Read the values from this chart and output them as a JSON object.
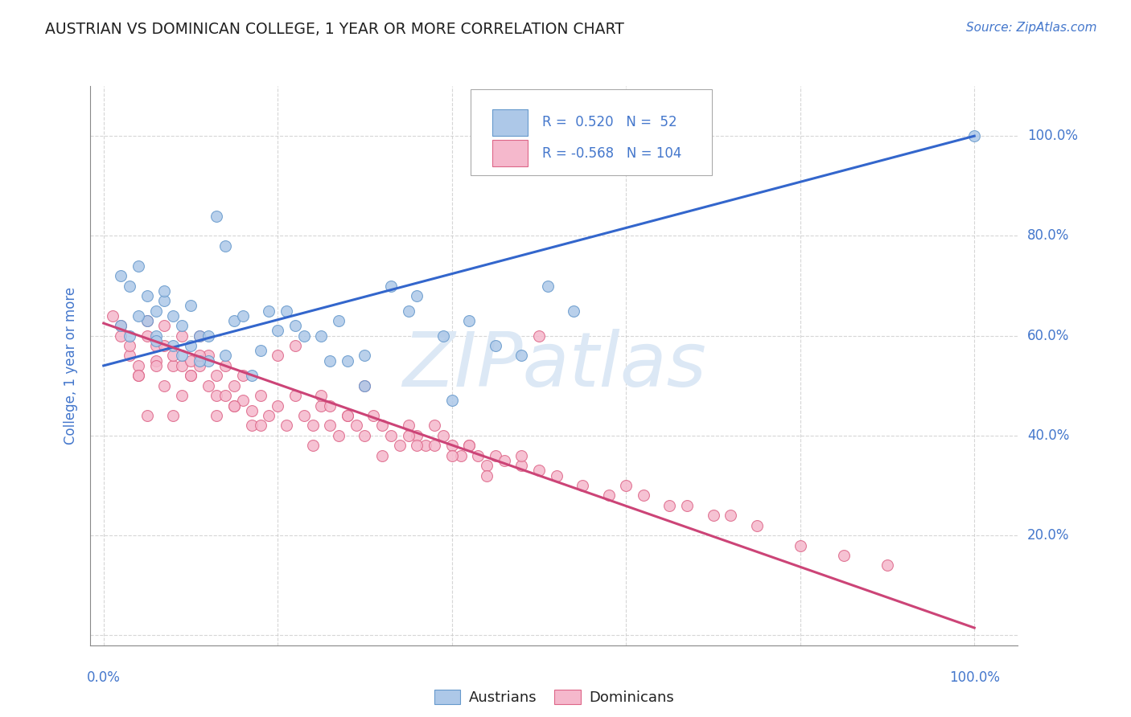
{
  "title": "AUSTRIAN VS DOMINICAN COLLEGE, 1 YEAR OR MORE CORRELATION CHART",
  "source": "Source: ZipAtlas.com",
  "ylabel": "College, 1 year or more",
  "legend_austrians": "Austrians",
  "legend_dominicans": "Dominicans",
  "R_austrians": 0.52,
  "N_austrians": 52,
  "R_dominicans": -0.568,
  "N_dominicans": 104,
  "austrian_color": "#adc8e8",
  "austrian_edge_color": "#6699cc",
  "austrian_line_color": "#3366cc",
  "dominican_color": "#f5b8cc",
  "dominican_edge_color": "#dd6688",
  "dominican_line_color": "#cc4477",
  "blue_text_color": "#4477cc",
  "watermark_color": "#dce8f5",
  "background_color": "#ffffff",
  "grid_color": "#cccccc",
  "title_color": "#222222",
  "legend_box_color": "#aaaaaa",
  "austrian_line_y_start": 0.54,
  "austrian_line_y_end": 1.0,
  "dominican_line_y_start": 0.625,
  "dominican_line_y_end": 0.015,
  "ylim": [
    -0.02,
    1.1
  ],
  "xlim": [
    -0.015,
    1.05
  ],
  "ytick_positions": [
    0.0,
    0.2,
    0.4,
    0.6,
    0.8,
    1.0
  ],
  "ytick_labels_right": [
    "",
    "20.0%",
    "40.0%",
    "60.0%",
    "80.0%",
    "100.0%"
  ],
  "xtick_positions": [
    0.0,
    0.2,
    0.4,
    0.6,
    0.8,
    1.0
  ],
  "austrian_x": [
    0.02,
    0.03,
    0.04,
    0.05,
    0.05,
    0.06,
    0.06,
    0.07,
    0.08,
    0.08,
    0.09,
    0.09,
    0.1,
    0.1,
    0.11,
    0.12,
    0.13,
    0.14,
    0.15,
    0.17,
    0.19,
    0.21,
    0.23,
    0.25,
    0.27,
    0.3,
    0.33,
    0.36,
    0.39,
    0.42,
    0.45,
    0.48,
    0.51,
    0.54,
    0.4,
    0.3,
    0.28,
    0.22,
    0.26,
    0.2,
    0.18,
    0.16,
    0.14,
    0.12,
    0.11,
    0.07,
    0.06,
    0.04,
    0.03,
    0.02,
    0.35,
    1.0
  ],
  "austrian_y": [
    0.72,
    0.7,
    0.74,
    0.68,
    0.63,
    0.65,
    0.6,
    0.67,
    0.64,
    0.58,
    0.62,
    0.56,
    0.66,
    0.58,
    0.6,
    0.55,
    0.84,
    0.78,
    0.63,
    0.52,
    0.65,
    0.65,
    0.6,
    0.6,
    0.63,
    0.56,
    0.7,
    0.68,
    0.6,
    0.63,
    0.58,
    0.56,
    0.7,
    0.65,
    0.47,
    0.5,
    0.55,
    0.62,
    0.55,
    0.61,
    0.57,
    0.64,
    0.56,
    0.6,
    0.55,
    0.69,
    0.59,
    0.64,
    0.6,
    0.62,
    0.65,
    1.0
  ],
  "dominican_x": [
    0.01,
    0.02,
    0.02,
    0.03,
    0.03,
    0.04,
    0.04,
    0.05,
    0.05,
    0.06,
    0.06,
    0.07,
    0.07,
    0.08,
    0.08,
    0.09,
    0.09,
    0.1,
    0.1,
    0.11,
    0.11,
    0.12,
    0.12,
    0.13,
    0.13,
    0.14,
    0.14,
    0.15,
    0.15,
    0.16,
    0.16,
    0.17,
    0.18,
    0.19,
    0.2,
    0.21,
    0.22,
    0.23,
    0.24,
    0.25,
    0.26,
    0.27,
    0.28,
    0.29,
    0.3,
    0.31,
    0.32,
    0.33,
    0.34,
    0.35,
    0.36,
    0.37,
    0.38,
    0.39,
    0.4,
    0.41,
    0.42,
    0.43,
    0.44,
    0.45,
    0.46,
    0.48,
    0.5,
    0.52,
    0.55,
    0.58,
    0.6,
    0.62,
    0.65,
    0.67,
    0.7,
    0.72,
    0.75,
    0.8,
    0.85,
    0.9,
    0.5,
    0.04,
    0.3,
    0.2,
    0.25,
    0.1,
    0.15,
    0.22,
    0.08,
    0.06,
    0.07,
    0.09,
    0.11,
    0.13,
    0.17,
    0.28,
    0.35,
    0.42,
    0.05,
    0.48,
    0.4,
    0.18,
    0.24,
    0.26,
    0.32,
    0.38,
    0.44,
    0.36
  ],
  "dominican_y": [
    0.64,
    0.62,
    0.6,
    0.56,
    0.58,
    0.54,
    0.52,
    0.63,
    0.6,
    0.58,
    0.55,
    0.62,
    0.58,
    0.54,
    0.56,
    0.6,
    0.54,
    0.52,
    0.55,
    0.54,
    0.6,
    0.5,
    0.56,
    0.48,
    0.52,
    0.48,
    0.54,
    0.46,
    0.5,
    0.47,
    0.52,
    0.45,
    0.48,
    0.44,
    0.46,
    0.42,
    0.48,
    0.44,
    0.42,
    0.46,
    0.42,
    0.4,
    0.44,
    0.42,
    0.4,
    0.44,
    0.42,
    0.4,
    0.38,
    0.42,
    0.4,
    0.38,
    0.42,
    0.4,
    0.38,
    0.36,
    0.38,
    0.36,
    0.34,
    0.36,
    0.35,
    0.34,
    0.33,
    0.32,
    0.3,
    0.28,
    0.3,
    0.28,
    0.26,
    0.26,
    0.24,
    0.24,
    0.22,
    0.18,
    0.16,
    0.14,
    0.6,
    0.52,
    0.5,
    0.56,
    0.48,
    0.52,
    0.46,
    0.58,
    0.44,
    0.54,
    0.5,
    0.48,
    0.56,
    0.44,
    0.42,
    0.44,
    0.4,
    0.38,
    0.44,
    0.36,
    0.36,
    0.42,
    0.38,
    0.46,
    0.36,
    0.38,
    0.32,
    0.38
  ]
}
